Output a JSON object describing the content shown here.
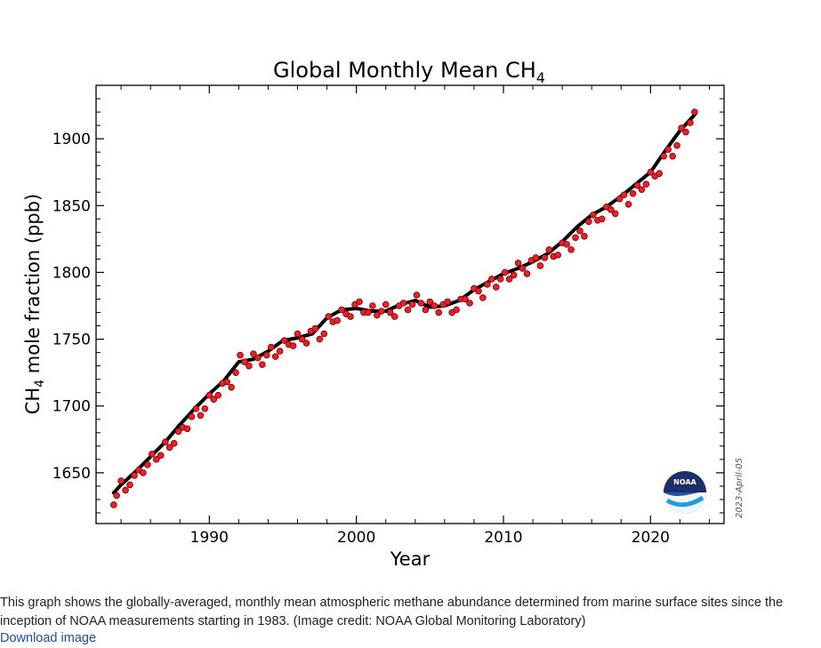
{
  "chart_data": {
    "type": "line",
    "title": "Global Monthly Mean CH",
    "title_sub": "4",
    "ylabel_prefix": "CH",
    "ylabel_sub": "4",
    "ylabel_suffix": " mole fraction (ppb)",
    "xlabel": "Year",
    "xlim": [
      1982.3,
      2025.0
    ],
    "ylim": [
      1612,
      1940
    ],
    "xticks": [
      1990,
      2000,
      2010,
      2020
    ],
    "yticks": [
      1650,
      1700,
      1750,
      1800,
      1850,
      1900
    ],
    "date_stamp": "2023-April-05",
    "logo_text": "NOAA",
    "grid": false,
    "series": [
      {
        "style": "black trend line",
        "x": [
          1983.5,
          1984,
          1985,
          1986,
          1987,
          1988,
          1989,
          1990,
          1991,
          1992,
          1993,
          1994,
          1995,
          1996,
          1997,
          1998,
          1999,
          2000,
          2001,
          2002,
          2003,
          2004,
          2005,
          2006,
          2007,
          2008,
          2009,
          2010,
          2011,
          2012,
          2013,
          2014,
          2015,
          2016,
          2017,
          2018,
          2019,
          2020,
          2021,
          2022,
          2023.0
        ],
        "y": [
          1635,
          1641,
          1651,
          1662,
          1673,
          1686,
          1698,
          1709,
          1719,
          1733,
          1735,
          1741,
          1749,
          1751,
          1754,
          1766,
          1772,
          1773,
          1771,
          1771,
          1776,
          1779,
          1774,
          1775,
          1779,
          1787,
          1793,
          1799,
          1803,
          1808,
          1814,
          1823,
          1834,
          1843,
          1849,
          1857,
          1866,
          1875,
          1891,
          1906,
          1918
        ]
      },
      {
        "style": "red monthly means",
        "x": [
          1983.5,
          1983.7,
          1984.0,
          1984.3,
          1984.6,
          1984.9,
          1985.2,
          1985.5,
          1985.8,
          1986.1,
          1986.4,
          1986.7,
          1987.0,
          1987.3,
          1987.6,
          1987.9,
          1988.2,
          1988.5,
          1988.8,
          1989.1,
          1989.4,
          1989.7,
          1990.0,
          1990.3,
          1990.6,
          1990.9,
          1991.2,
          1991.5,
          1991.8,
          1992.1,
          1992.4,
          1992.7,
          1993.0,
          1993.3,
          1993.6,
          1993.9,
          1994.2,
          1994.5,
          1994.8,
          1995.1,
          1995.4,
          1995.7,
          1996.0,
          1996.3,
          1996.6,
          1996.9,
          1997.2,
          1997.5,
          1997.8,
          1998.1,
          1998.4,
          1998.7,
          1999.0,
          1999.3,
          1999.6,
          1999.9,
          2000.2,
          2000.5,
          2000.8,
          2001.1,
          2001.4,
          2001.7,
          2002.0,
          2002.3,
          2002.6,
          2002.9,
          2003.2,
          2003.5,
          2003.8,
          2004.1,
          2004.4,
          2004.7,
          2005.0,
          2005.3,
          2005.6,
          2005.9,
          2006.2,
          2006.5,
          2006.8,
          2007.1,
          2007.4,
          2007.7,
          2008.0,
          2008.3,
          2008.6,
          2008.9,
          2009.2,
          2009.5,
          2009.8,
          2010.1,
          2010.4,
          2010.7,
          2011.0,
          2011.3,
          2011.6,
          2011.9,
          2012.2,
          2012.5,
          2012.8,
          2013.1,
          2013.4,
          2013.7,
          2014.0,
          2014.3,
          2014.6,
          2014.9,
          2015.2,
          2015.5,
          2015.8,
          2016.1,
          2016.4,
          2016.7,
          2017.0,
          2017.3,
          2017.6,
          2017.9,
          2018.2,
          2018.5,
          2018.8,
          2019.1,
          2019.4,
          2019.7,
          2020.0,
          2020.3,
          2020.6,
          2020.9,
          2021.2,
          2021.5,
          2021.8,
          2022.1,
          2022.4,
          2022.7,
          2023.0
        ],
        "y": [
          1626,
          1633,
          1644,
          1637,
          1641,
          1648,
          1652,
          1650,
          1656,
          1664,
          1660,
          1663,
          1673,
          1669,
          1672,
          1681,
          1684,
          1683,
          1692,
          1698,
          1693,
          1698,
          1708,
          1705,
          1708,
          1717,
          1718,
          1714,
          1725,
          1738,
          1733,
          1730,
          1739,
          1736,
          1731,
          1738,
          1744,
          1737,
          1741,
          1749,
          1746,
          1745,
          1754,
          1750,
          1747,
          1756,
          1758,
          1750,
          1754,
          1767,
          1763,
          1764,
          1772,
          1769,
          1767,
          1776,
          1778,
          1770,
          1770,
          1775,
          1768,
          1771,
          1776,
          1770,
          1767,
          1775,
          1777,
          1772,
          1776,
          1783,
          1777,
          1772,
          1778,
          1775,
          1770,
          1776,
          1778,
          1770,
          1772,
          1780,
          1780,
          1777,
          1788,
          1786,
          1781,
          1791,
          1795,
          1789,
          1795,
          1800,
          1795,
          1798,
          1807,
          1803,
          1799,
          1809,
          1811,
          1805,
          1811,
          1817,
          1812,
          1813,
          1822,
          1821,
          1817,
          1826,
          1831,
          1827,
          1838,
          1843,
          1839,
          1840,
          1849,
          1847,
          1844,
          1855,
          1858,
          1851,
          1859,
          1865,
          1862,
          1866,
          1875,
          1872,
          1874,
          1887,
          1892,
          1887,
          1895,
          1908,
          1905,
          1912,
          1920
        ]
      }
    ]
  },
  "caption": "This graph shows the globally-averaged, monthly mean atmospheric methane abundance determined from marine surface sites since the inception of NOAA measurements starting in 1983. (Image credit: NOAA Global Monitoring Laboratory)",
  "link_text": "Download image"
}
